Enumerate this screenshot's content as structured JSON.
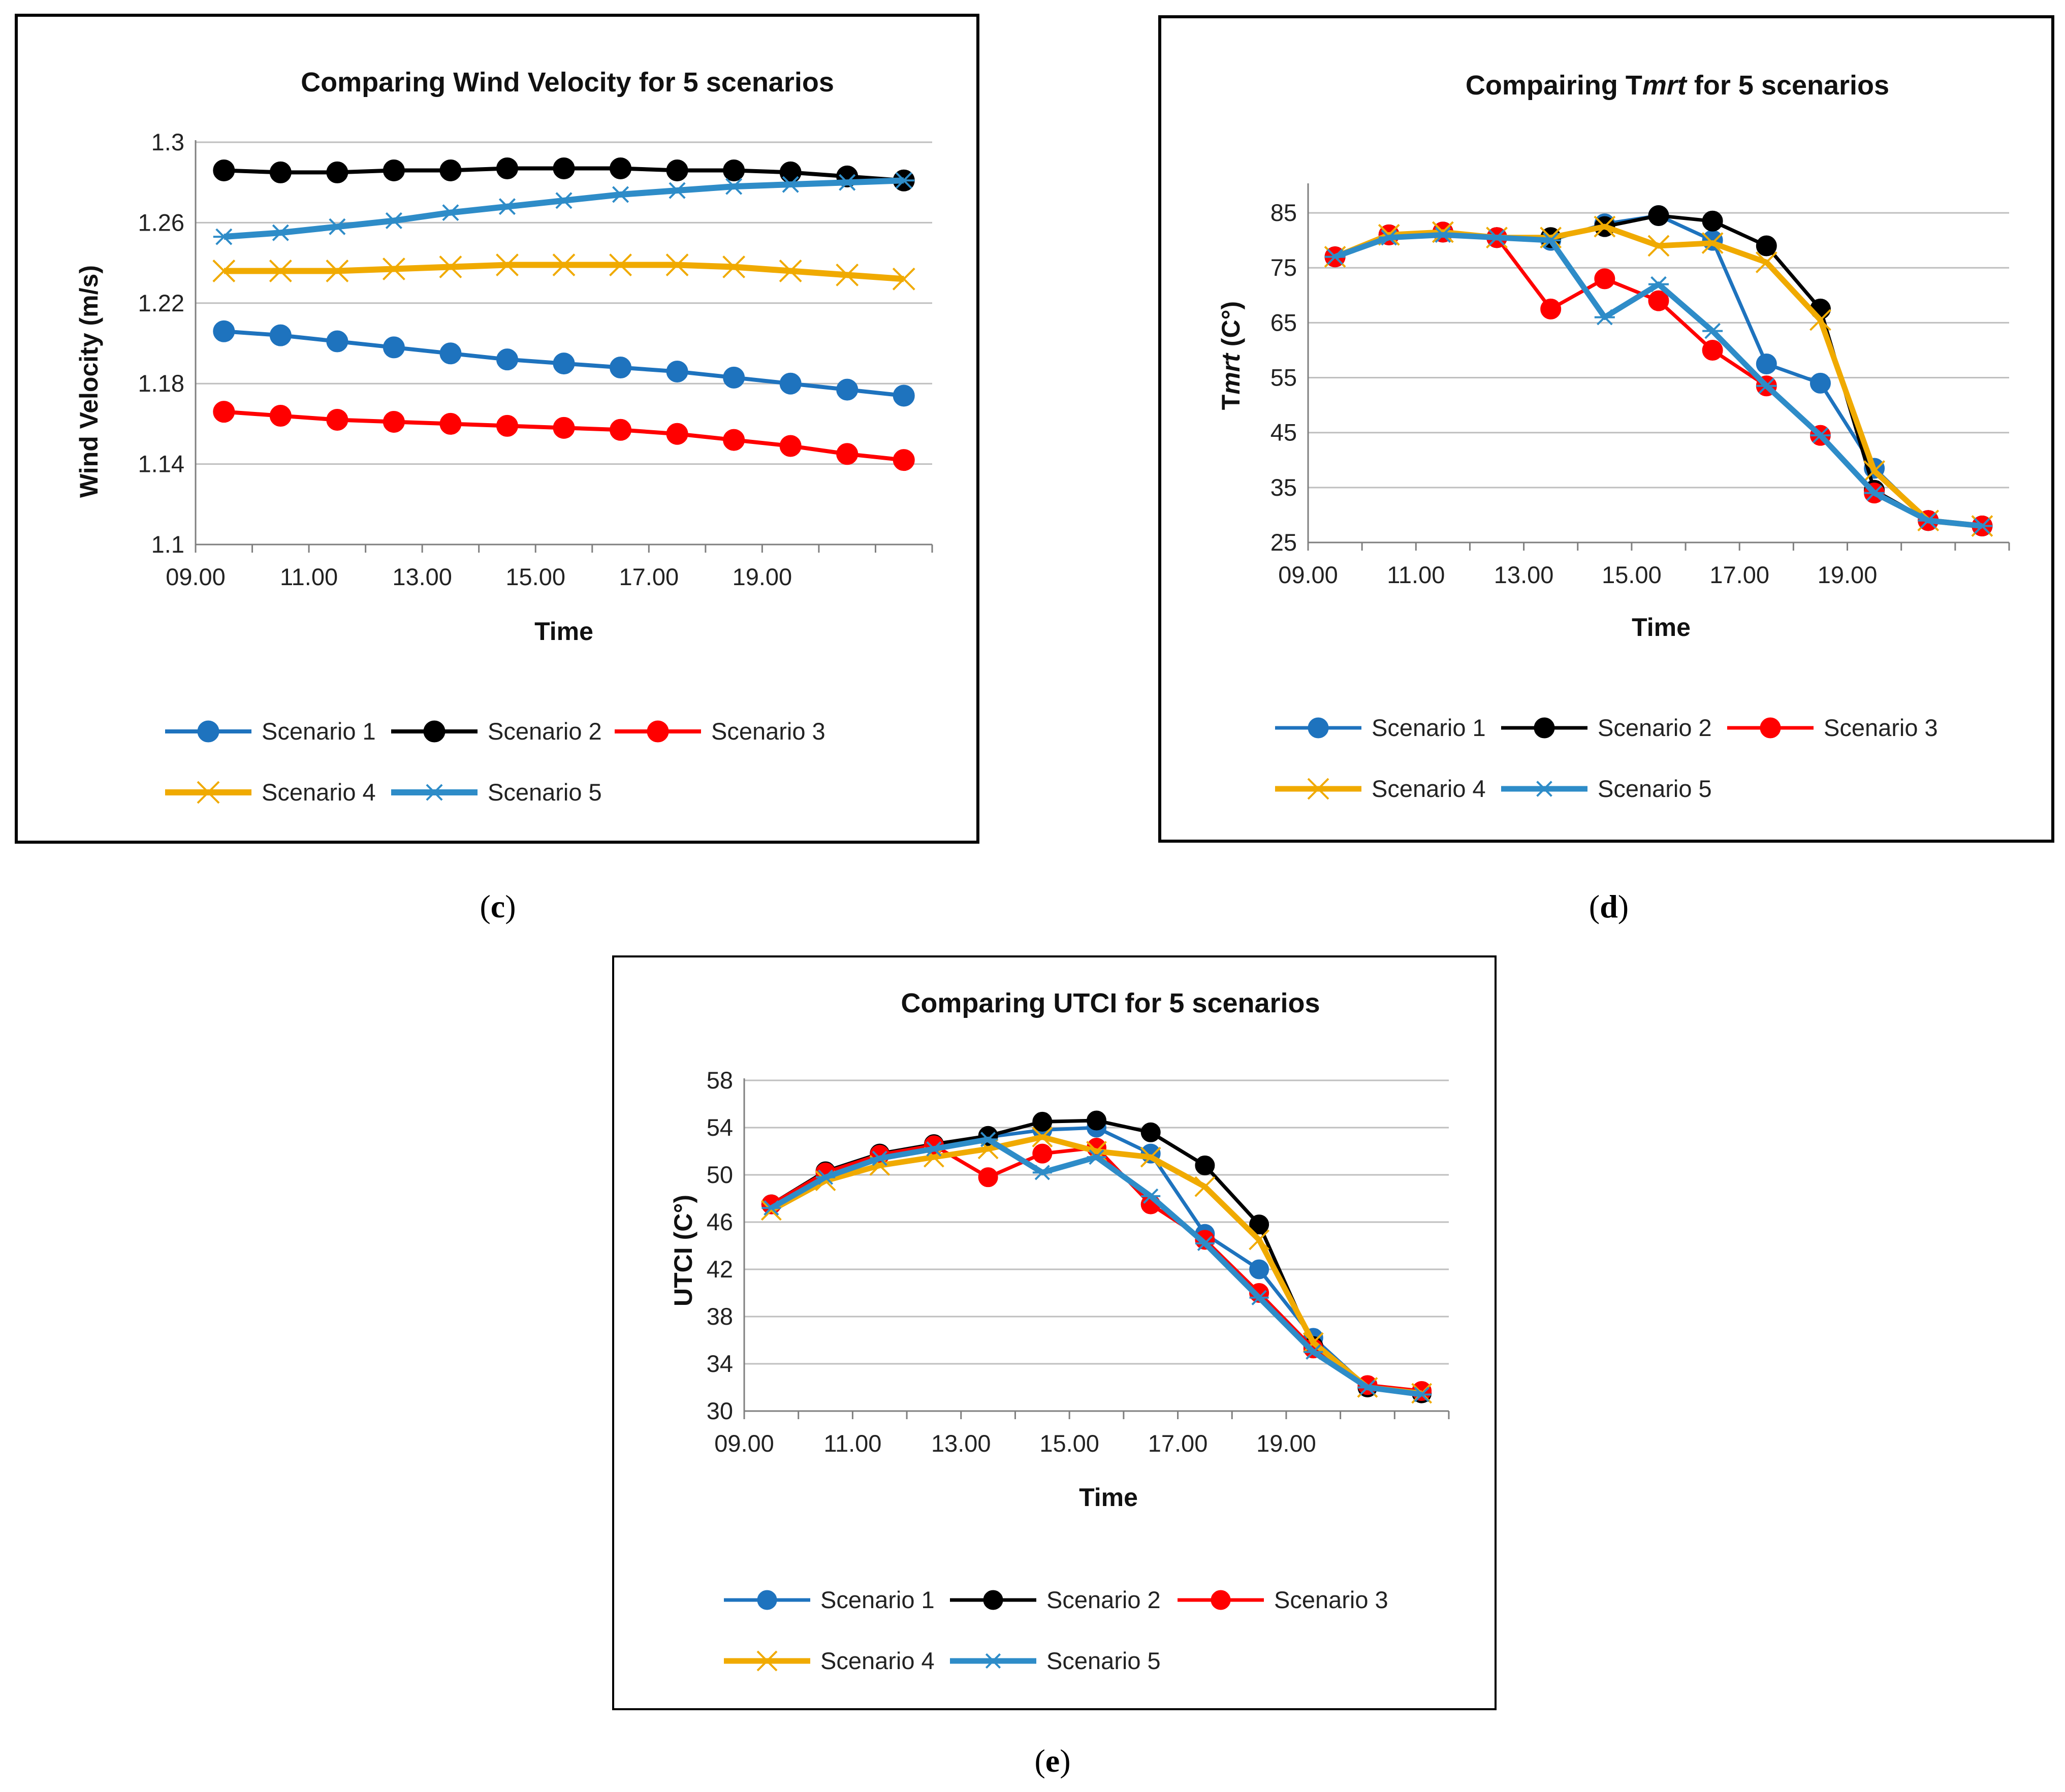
{
  "captions": {
    "c": "c",
    "d": "d",
    "e": "e"
  },
  "legend": [
    "Scenario 1",
    "Scenario 2",
    "Scenario 3",
    "Scenario 4",
    "Scenario 5"
  ],
  "series_styles": [
    {
      "name": "Scenario 1",
      "color": "#1E73BE",
      "marker": "circle"
    },
    {
      "name": "Scenario 2",
      "color": "#000000",
      "marker": "circle"
    },
    {
      "name": "Scenario 3",
      "color": "#FF0000",
      "marker": "circle"
    },
    {
      "name": "Scenario 4",
      "color": "#F0AA00",
      "marker": "x"
    },
    {
      "name": "Scenario 5",
      "color": "#2E8CC8",
      "marker": "star"
    }
  ],
  "chart_data": [
    {
      "id": "c",
      "type": "line",
      "title": "Comparing Wind Velocity for 5 scenarios",
      "xlabel": "Time",
      "ylabel": "Wind Velocity (m/s)",
      "ylim": [
        1.1,
        1.3
      ],
      "yticks": [
        "1.1",
        "1.14",
        "1.18",
        "1.22",
        "1.26",
        "1.3"
      ],
      "x_tick_labels": [
        "09.00",
        "11.00",
        "13.00",
        "15.00",
        "17.00",
        "19.00"
      ],
      "x": [
        9,
        10,
        11,
        12,
        13,
        14,
        15,
        16,
        17,
        18,
        19,
        20,
        21
      ],
      "series": [
        {
          "name": "Scenario 1",
          "values": [
            1.206,
            1.204,
            1.201,
            1.198,
            1.195,
            1.192,
            1.19,
            1.188,
            1.186,
            1.183,
            1.18,
            1.177,
            1.174
          ]
        },
        {
          "name": "Scenario 2",
          "values": [
            1.286,
            1.285,
            1.285,
            1.286,
            1.286,
            1.287,
            1.287,
            1.287,
            1.286,
            1.286,
            1.285,
            1.283,
            1.281
          ]
        },
        {
          "name": "Scenario 3",
          "values": [
            1.166,
            1.164,
            1.162,
            1.161,
            1.16,
            1.159,
            1.158,
            1.157,
            1.155,
            1.152,
            1.149,
            1.145,
            1.142
          ]
        },
        {
          "name": "Scenario 4",
          "values": [
            1.236,
            1.236,
            1.236,
            1.237,
            1.238,
            1.239,
            1.239,
            1.239,
            1.239,
            1.238,
            1.236,
            1.234,
            1.232
          ]
        },
        {
          "name": "Scenario 5",
          "values": [
            1.253,
            1.255,
            1.258,
            1.261,
            1.265,
            1.268,
            1.271,
            1.274,
            1.276,
            1.278,
            1.279,
            1.28,
            1.281
          ]
        }
      ]
    },
    {
      "id": "d",
      "type": "line",
      "title_parts": [
        {
          "text": "Compairing T",
          "italic": false
        },
        {
          "text": "mrt",
          "italic": true
        },
        {
          "text": " for 5 scenarios",
          "italic": false
        }
      ],
      "xlabel": "Time",
      "ylabel_parts": [
        {
          "text": "T",
          "italic": false
        },
        {
          "text": "mrt",
          "italic": true
        },
        {
          "text": " (C°)",
          "italic": false
        }
      ],
      "ylim": [
        25,
        90
      ],
      "yticks": [
        "25",
        "35",
        "45",
        "55",
        "65",
        "75",
        "85"
      ],
      "x_tick_labels": [
        "09.00",
        "11.00",
        "13.00",
        "15.00",
        "17.00",
        "19.00"
      ],
      "x": [
        9,
        10,
        11,
        12,
        13,
        14,
        15,
        16,
        17,
        18,
        19,
        20,
        21
      ],
      "series": [
        {
          "name": "Scenario 1",
          "values": [
            77,
            81,
            81.5,
            80.5,
            80,
            83,
            84.5,
            80,
            57.5,
            54,
            38.5,
            29,
            28
          ]
        },
        {
          "name": "Scenario 2",
          "values": [
            77,
            81,
            81.5,
            80.5,
            80.5,
            82.5,
            84.5,
            83.5,
            79,
            67.5,
            34.5,
            29,
            28
          ]
        },
        {
          "name": "Scenario 3",
          "values": [
            77,
            81,
            81.5,
            80.5,
            67.5,
            73,
            69,
            60,
            53.5,
            44.5,
            34,
            29,
            28
          ]
        },
        {
          "name": "Scenario 4",
          "values": [
            77,
            81,
            81.5,
            80.5,
            80.5,
            82.5,
            79,
            79.5,
            76,
            65.5,
            38,
            29,
            28
          ]
        },
        {
          "name": "Scenario 5",
          "values": [
            77,
            80.5,
            81,
            80.5,
            80,
            66,
            72,
            63.5,
            53.5,
            44.5,
            34,
            29,
            28
          ]
        }
      ]
    },
    {
      "id": "e",
      "type": "line",
      "title": "Comparing UTCI for 5 scenarios",
      "xlabel": "Time",
      "ylabel": "UTCI (C°)",
      "ylim": [
        30,
        58
      ],
      "yticks": [
        "30",
        "34",
        "38",
        "42",
        "46",
        "50",
        "54",
        "58"
      ],
      "x_tick_labels": [
        "09.00",
        "11.00",
        "13.00",
        "15.00",
        "17.00",
        "19.00"
      ],
      "x": [
        9,
        10,
        11,
        12,
        13,
        14,
        15,
        16,
        17,
        18,
        19,
        20,
        21
      ],
      "series": [
        {
          "name": "Scenario 1",
          "values": [
            47.5,
            50.3,
            51.8,
            52.5,
            53.2,
            53.8,
            54,
            51.8,
            45,
            42,
            36.2,
            32,
            31.5
          ]
        },
        {
          "name": "Scenario 2",
          "values": [
            47.5,
            50.3,
            51.8,
            52.6,
            53.3,
            54.5,
            54.6,
            53.6,
            50.8,
            45.8,
            35.5,
            32,
            31.5
          ]
        },
        {
          "name": "Scenario 3",
          "values": [
            47.5,
            50.2,
            51.7,
            52.5,
            49.8,
            51.8,
            52.3,
            47.5,
            44.5,
            40,
            35.3,
            32.2,
            31.7
          ]
        },
        {
          "name": "Scenario 4",
          "values": [
            47,
            49.5,
            50.8,
            51.5,
            52.2,
            53.2,
            52,
            51.5,
            49,
            44.5,
            35.8,
            32,
            31.5
          ]
        },
        {
          "name": "Scenario 5",
          "values": [
            47.2,
            49.8,
            51.4,
            52.2,
            53,
            50.2,
            51.5,
            48.2,
            44.2,
            39.6,
            35,
            32,
            31.4
          ]
        }
      ]
    }
  ]
}
